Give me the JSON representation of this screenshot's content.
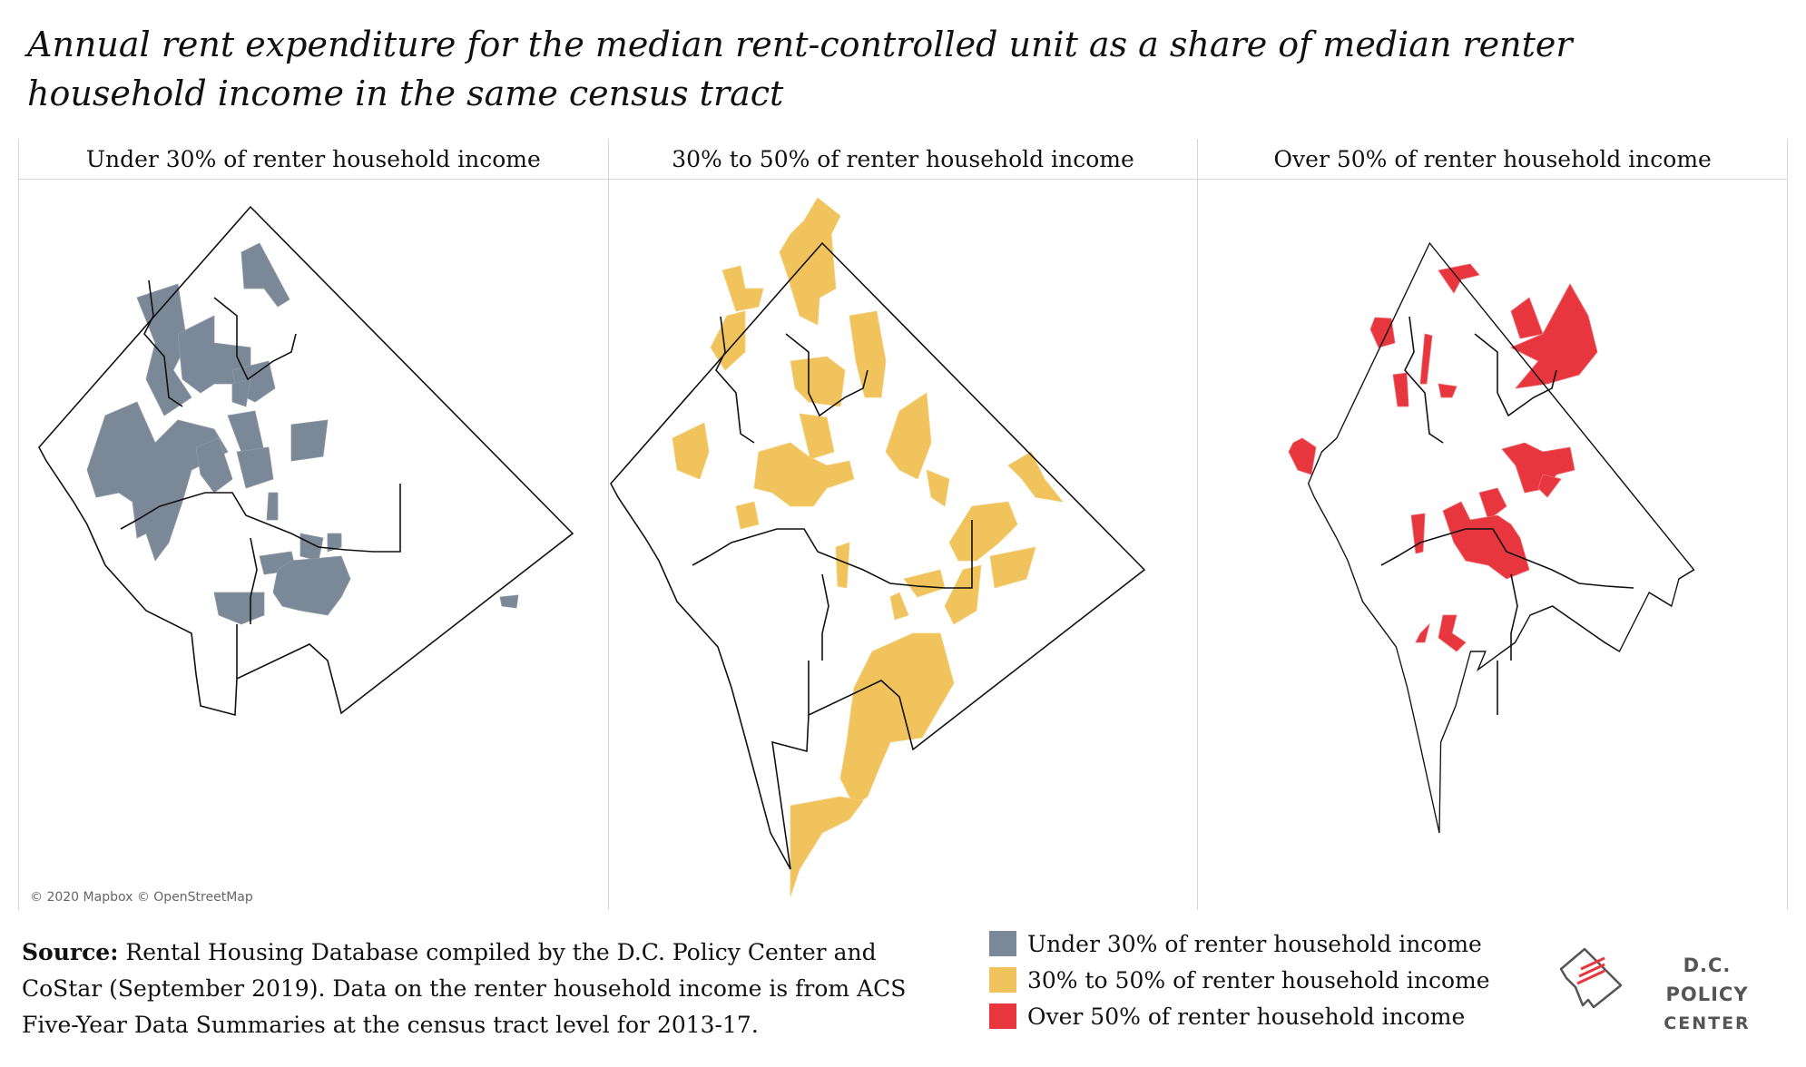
{
  "title": "Annual rent expenditure for the median rent-controlled unit as a share of median renter household income in the same census tract",
  "panels": [
    {
      "label": "Under 30% of renter household income",
      "color": "#7b8897"
    },
    {
      "label": "30% to 50% of renter household income",
      "color": "#f1c35c"
    },
    {
      "label": "Over 50% of renter household income",
      "color": "#e8363f"
    }
  ],
  "map_attribution": "© 2020 Mapbox © OpenStreetMap",
  "source": {
    "label": "Source:",
    "text": " Rental Housing Database compiled by the D.C. Policy Center and CoStar (September 2019). Data on the renter household income is from ACS Five-Year Data Summaries at the census tract level for 2013-17."
  },
  "legend": [
    {
      "label": "Under 30% of renter household income",
      "color": "#7b8897"
    },
    {
      "label": "30% to 50% of renter household income",
      "color": "#f1c35c"
    },
    {
      "label": "Over 50% of renter household income",
      "color": "#e8363f"
    }
  ],
  "logo": {
    "line1": "D.C. POLICY",
    "line2": "CENTER",
    "icon": "dc-policy-center-logo-icon"
  }
}
